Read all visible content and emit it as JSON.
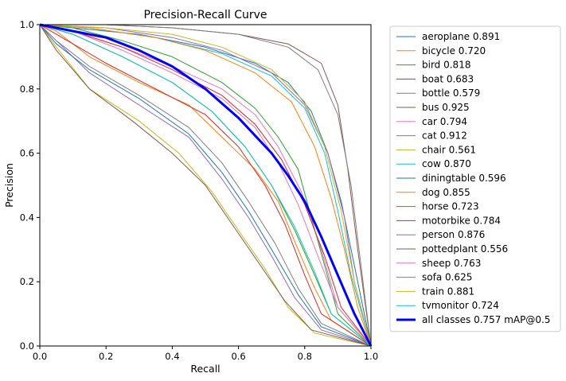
{
  "chart_data": {
    "type": "line",
    "title": "Precision-Recall Curve",
    "xlabel": "Recall",
    "ylabel": "Precision",
    "xlim": [
      0,
      1
    ],
    "ylim": [
      0,
      1
    ],
    "xticks": [
      "0.0",
      "0.2",
      "0.4",
      "0.6",
      "0.8",
      "1.0"
    ],
    "yticks": [
      "0.0",
      "0.2",
      "0.4",
      "0.6",
      "0.8",
      "1.0"
    ],
    "grid": false,
    "legend_position": "outside-right",
    "series": [
      {
        "name": "aeroplane 0.891",
        "color": "#1f77b4",
        "x": [
          0,
          0.1,
          0.3,
          0.5,
          0.65,
          0.75,
          0.82,
          0.87,
          0.91,
          0.95,
          1.0
        ],
        "y": [
          1,
          0.99,
          0.97,
          0.93,
          0.88,
          0.82,
          0.73,
          0.6,
          0.45,
          0.25,
          0
        ]
      },
      {
        "name": "bicycle 0.720",
        "color": "#ff7f0e",
        "x": [
          0,
          0.05,
          0.15,
          0.3,
          0.45,
          0.55,
          0.65,
          0.72,
          0.78,
          0.83,
          0.88,
          1.0
        ],
        "y": [
          1,
          0.98,
          0.9,
          0.82,
          0.75,
          0.65,
          0.55,
          0.45,
          0.3,
          0.18,
          0.08,
          0
        ]
      },
      {
        "name": "bird 0.818",
        "color": "#2ca02c",
        "x": [
          0,
          0.1,
          0.25,
          0.4,
          0.55,
          0.65,
          0.72,
          0.78,
          0.82,
          0.86,
          0.9,
          1.0
        ],
        "y": [
          1,
          0.99,
          0.95,
          0.9,
          0.82,
          0.74,
          0.65,
          0.55,
          0.4,
          0.25,
          0.1,
          0
        ]
      },
      {
        "name": "boat 0.683",
        "color": "#d62728",
        "x": [
          0,
          0.05,
          0.2,
          0.35,
          0.5,
          0.6,
          0.68,
          0.74,
          0.8,
          0.85,
          1.0
        ],
        "y": [
          1,
          0.97,
          0.88,
          0.8,
          0.72,
          0.62,
          0.5,
          0.38,
          0.22,
          0.1,
          0
        ]
      },
      {
        "name": "bottle 0.579",
        "color": "#9467bd",
        "x": [
          0,
          0.05,
          0.15,
          0.3,
          0.45,
          0.55,
          0.63,
          0.7,
          0.77,
          0.85,
          1.0
        ],
        "y": [
          1,
          0.95,
          0.85,
          0.75,
          0.65,
          0.52,
          0.4,
          0.28,
          0.15,
          0.05,
          0
        ]
      },
      {
        "name": "bus 0.925",
        "color": "#8c564b",
        "x": [
          0,
          0.2,
          0.4,
          0.6,
          0.75,
          0.85,
          0.9,
          0.93,
          0.96,
          1.0
        ],
        "y": [
          1,
          1,
          0.99,
          0.97,
          0.94,
          0.88,
          0.75,
          0.55,
          0.3,
          0
        ]
      },
      {
        "name": "car 0.794",
        "color": "#e377c2",
        "x": [
          0,
          0.1,
          0.25,
          0.4,
          0.55,
          0.65,
          0.72,
          0.79,
          0.85,
          0.9,
          1.0
        ],
        "y": [
          1,
          0.98,
          0.93,
          0.87,
          0.8,
          0.72,
          0.62,
          0.48,
          0.3,
          0.12,
          0
        ]
      },
      {
        "name": "cat 0.912",
        "color": "#7f7f7f",
        "x": [
          0,
          0.2,
          0.4,
          0.6,
          0.75,
          0.84,
          0.9,
          0.94,
          0.97,
          1.0
        ],
        "y": [
          1,
          1,
          0.99,
          0.97,
          0.93,
          0.86,
          0.72,
          0.5,
          0.25,
          0
        ]
      },
      {
        "name": "chair 0.561",
        "color": "#bcbd22",
        "x": [
          0,
          0.05,
          0.15,
          0.3,
          0.42,
          0.52,
          0.6,
          0.68,
          0.75,
          0.83,
          1.0
        ],
        "y": [
          1,
          0.93,
          0.8,
          0.7,
          0.6,
          0.48,
          0.36,
          0.24,
          0.12,
          0.04,
          0
        ]
      },
      {
        "name": "cow 0.870",
        "color": "#17becf",
        "x": [
          0,
          0.15,
          0.35,
          0.55,
          0.7,
          0.8,
          0.86,
          0.9,
          0.94,
          1.0
        ],
        "y": [
          1,
          0.99,
          0.96,
          0.91,
          0.84,
          0.74,
          0.6,
          0.42,
          0.22,
          0
        ]
      },
      {
        "name": "diningtable 0.596",
        "color": "#1f77b4",
        "x": [
          0,
          0.05,
          0.15,
          0.3,
          0.45,
          0.55,
          0.63,
          0.7,
          0.78,
          0.85,
          1.0
        ],
        "y": [
          1,
          0.94,
          0.86,
          0.77,
          0.66,
          0.54,
          0.42,
          0.3,
          0.16,
          0.06,
          0
        ]
      },
      {
        "name": "dog 0.855",
        "color": "#ff7f0e",
        "x": [
          0,
          0.15,
          0.35,
          0.5,
          0.65,
          0.76,
          0.83,
          0.88,
          0.92,
          0.96,
          1.0
        ],
        "y": [
          1,
          0.99,
          0.96,
          0.92,
          0.85,
          0.76,
          0.62,
          0.46,
          0.3,
          0.12,
          0
        ]
      },
      {
        "name": "horse 0.723",
        "color": "#2ca02c",
        "x": [
          0,
          0.1,
          0.25,
          0.4,
          0.52,
          0.62,
          0.7,
          0.77,
          0.83,
          0.88,
          1.0
        ],
        "y": [
          1,
          0.97,
          0.9,
          0.82,
          0.73,
          0.62,
          0.5,
          0.36,
          0.22,
          0.1,
          0
        ]
      },
      {
        "name": "motorbike 0.784",
        "color": "#d62728",
        "x": [
          0,
          0.1,
          0.25,
          0.4,
          0.55,
          0.65,
          0.73,
          0.8,
          0.86,
          0.91,
          1.0
        ],
        "y": [
          1,
          0.98,
          0.93,
          0.86,
          0.78,
          0.69,
          0.58,
          0.44,
          0.28,
          0.12,
          0
        ]
      },
      {
        "name": "person 0.876",
        "color": "#9467bd",
        "x": [
          0,
          0.2,
          0.4,
          0.55,
          0.7,
          0.8,
          0.87,
          0.92,
          0.95,
          1.0
        ],
        "y": [
          1,
          0.99,
          0.96,
          0.92,
          0.85,
          0.75,
          0.6,
          0.4,
          0.2,
          0
        ]
      },
      {
        "name": "pottedplant 0.556",
        "color": "#8c564b",
        "x": [
          0,
          0.05,
          0.15,
          0.28,
          0.4,
          0.5,
          0.58,
          0.66,
          0.74,
          0.82,
          1.0
        ],
        "y": [
          1,
          0.92,
          0.8,
          0.7,
          0.6,
          0.5,
          0.38,
          0.26,
          0.14,
          0.05,
          0
        ]
      },
      {
        "name": "sheep 0.763",
        "color": "#e377c2",
        "x": [
          0,
          0.1,
          0.25,
          0.4,
          0.55,
          0.65,
          0.72,
          0.78,
          0.84,
          0.9,
          1.0
        ],
        "y": [
          1,
          0.98,
          0.92,
          0.85,
          0.77,
          0.68,
          0.57,
          0.44,
          0.28,
          0.12,
          0
        ]
      },
      {
        "name": "sofa 0.625",
        "color": "#7f7f7f",
        "x": [
          0,
          0.05,
          0.15,
          0.3,
          0.45,
          0.55,
          0.63,
          0.71,
          0.78,
          0.85,
          1.0
        ],
        "y": [
          1,
          0.95,
          0.87,
          0.78,
          0.68,
          0.57,
          0.45,
          0.32,
          0.18,
          0.07,
          0
        ]
      },
      {
        "name": "train 0.881",
        "color": "#bcbd22",
        "x": [
          0,
          0.2,
          0.4,
          0.55,
          0.7,
          0.8,
          0.86,
          0.91,
          0.95,
          1.0
        ],
        "y": [
          1,
          0.99,
          0.97,
          0.93,
          0.86,
          0.76,
          0.62,
          0.42,
          0.2,
          0
        ]
      },
      {
        "name": "tvmonitor 0.724",
        "color": "#17becf",
        "x": [
          0,
          0.1,
          0.25,
          0.4,
          0.52,
          0.62,
          0.7,
          0.77,
          0.83,
          0.88,
          1.0
        ],
        "y": [
          1,
          0.97,
          0.9,
          0.82,
          0.73,
          0.62,
          0.5,
          0.37,
          0.23,
          0.1,
          0
        ]
      },
      {
        "name": "all classes 0.757 mAP@0.5",
        "color": "#0000ff",
        "thick": true,
        "x": [
          0,
          0.05,
          0.1,
          0.2,
          0.3,
          0.4,
          0.5,
          0.6,
          0.7,
          0.75,
          0.8,
          0.85,
          0.9,
          0.95,
          1.0
        ],
        "y": [
          1,
          0.99,
          0.98,
          0.96,
          0.92,
          0.87,
          0.8,
          0.71,
          0.6,
          0.53,
          0.45,
          0.34,
          0.22,
          0.1,
          0
        ]
      }
    ]
  }
}
